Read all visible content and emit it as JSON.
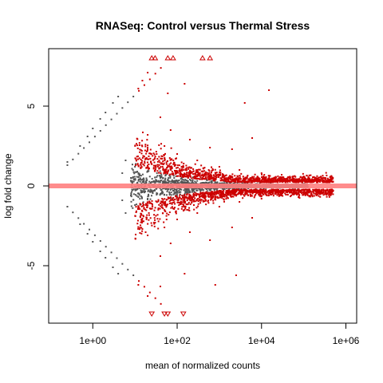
{
  "chart_data": {
    "type": "scatter",
    "title": "RNASeq: Control versus Thermal Stress",
    "xlabel": "mean of normalized counts",
    "ylabel": "log fold change",
    "x_scale": "log10",
    "xlim": [
      0.09,
      1800000
    ],
    "ylim": [
      -8.6,
      8.6
    ],
    "x_ticks": [
      1,
      100,
      10000,
      1000000
    ],
    "x_tick_labels": [
      "1e+00",
      "1e+02",
      "1e+04",
      "1e+06"
    ],
    "y_ticks": [
      -5,
      0,
      5
    ],
    "y_tick_labels": [
      "-5",
      "0",
      "5"
    ],
    "grid": false,
    "reference_line": {
      "y": 0,
      "color": "#ff7f7f"
    },
    "colors": {
      "not_significant": "#555555",
      "significant": "#cc0000",
      "reference_line": "#ff7f7f"
    },
    "series": [
      {
        "category": "not_significant",
        "points": [
          [
            0.25,
            1.5
          ],
          [
            0.25,
            -1.3
          ],
          [
            0.5,
            2.5
          ],
          [
            0.5,
            -2.4
          ],
          [
            0.75,
            3.1
          ],
          [
            0.75,
            -3.0
          ],
          [
            1.0,
            3.6
          ],
          [
            1.0,
            -3.5
          ],
          [
            1.5,
            4.2
          ],
          [
            1.5,
            -4.1
          ],
          [
            2.0,
            4.6
          ],
          [
            2.0,
            -4.5
          ],
          [
            3.0,
            5.2
          ],
          [
            3.0,
            -5.1
          ],
          [
            4.0,
            5.6
          ],
          [
            4.0,
            -5.5
          ],
          [
            5.0,
            0.8
          ],
          [
            5.0,
            -0.9
          ],
          [
            6.0,
            1.6
          ],
          [
            6.0,
            -1.7
          ],
          [
            8.0,
            0.5
          ],
          [
            8.0,
            -0.6
          ],
          [
            10.0,
            1.2
          ],
          [
            10.0,
            -1.2
          ],
          [
            15.0,
            0.4
          ],
          [
            15.0,
            -0.4
          ],
          [
            20.0,
            0.9
          ],
          [
            20.0,
            -0.8
          ],
          [
            40.0,
            0.5
          ],
          [
            40.0,
            -0.5
          ],
          [
            80.0,
            0.3
          ],
          [
            80.0,
            -0.3
          ],
          [
            200.0,
            0.4
          ],
          [
            200.0,
            -0.4
          ],
          [
            500.0,
            0.2
          ],
          [
            500.0,
            -0.2
          ],
          [
            1500.0,
            0.15
          ],
          [
            1500.0,
            -0.15
          ]
        ]
      },
      {
        "category": "significant",
        "points": [
          [
            25,
            8.0
          ],
          [
            30,
            8.0
          ],
          [
            60,
            8.0
          ],
          [
            80,
            8.0
          ],
          [
            400,
            8.0
          ],
          [
            600,
            8.0
          ],
          [
            25,
            -8.0
          ],
          [
            50,
            -8.0
          ],
          [
            60,
            -8.0
          ],
          [
            140,
            -8.0
          ],
          [
            12,
            6.1
          ],
          [
            15,
            6.6
          ],
          [
            20,
            7.1
          ],
          [
            60,
            5.8
          ],
          [
            150,
            6.4
          ],
          [
            4000,
            5.2
          ],
          [
            15000,
            6.0
          ],
          [
            12,
            -6.2
          ],
          [
            20,
            -6.9
          ],
          [
            40,
            -6.3
          ],
          [
            150,
            -5.5
          ],
          [
            800,
            -6.2
          ],
          [
            2500,
            -5.6
          ],
          [
            20,
            3.2
          ],
          [
            50,
            2.5
          ],
          [
            100,
            2.0
          ],
          [
            300,
            1.6
          ],
          [
            1000,
            1.2
          ],
          [
            3000,
            1.0
          ],
          [
            10000,
            0.8
          ],
          [
            30000,
            0.7
          ],
          [
            100000,
            0.6
          ],
          [
            300000,
            0.5
          ],
          [
            500000,
            -0.3
          ],
          [
            20,
            -3.1
          ],
          [
            50,
            -2.6
          ],
          [
            100,
            -2.1
          ],
          [
            300,
            -1.7
          ],
          [
            1000,
            -1.3
          ],
          [
            3000,
            -1.0
          ],
          [
            10000,
            -0.8
          ],
          [
            30000,
            -0.6
          ],
          [
            100000,
            -0.5
          ],
          [
            40,
            4.3
          ],
          [
            70,
            3.5
          ],
          [
            200,
            2.9
          ],
          [
            600,
            2.4
          ],
          [
            2000,
            2.3
          ],
          [
            6000,
            3.0
          ],
          [
            40,
            -4.4
          ],
          [
            70,
            -3.6
          ],
          [
            200,
            -2.9
          ],
          [
            600,
            -3.4
          ],
          [
            2000,
            -2.6
          ],
          [
            6000,
            -2.0
          ]
        ]
      }
    ]
  }
}
